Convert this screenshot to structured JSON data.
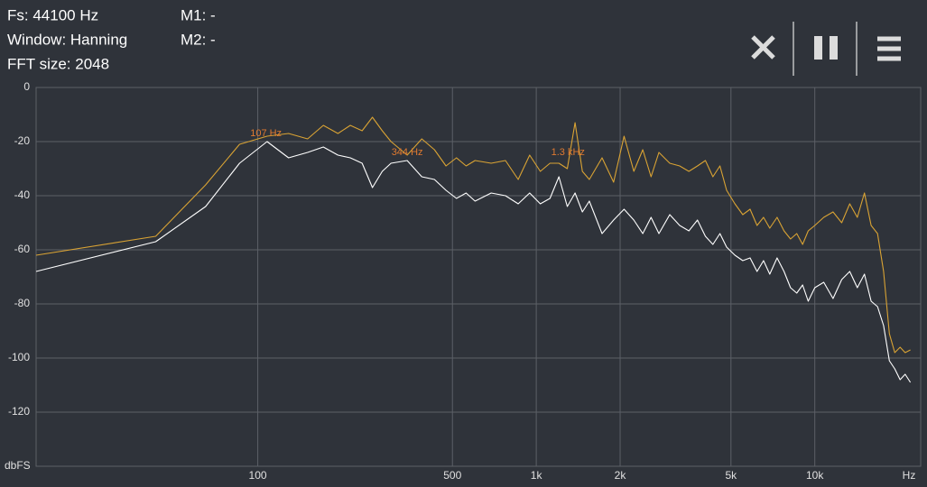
{
  "info": {
    "fs": "Fs: 44100 Hz",
    "window": "Window: Hanning",
    "fft": "FFT size: 2048",
    "m1": "M1: -",
    "m2": "M2: -"
  },
  "chart_data": {
    "type": "line",
    "x_label": "Hz",
    "y_label": "dbFS",
    "xlog": true,
    "grid": true,
    "xlim": [
      16,
      24000
    ],
    "ylim": [
      -140,
      0
    ],
    "xticks": [
      100,
      500,
      {
        "value": 1000,
        "label": "1k"
      },
      {
        "value": 2000,
        "label": "2k"
      },
      {
        "value": 5000,
        "label": "5k"
      },
      {
        "value": 10000,
        "label": "10k"
      }
    ],
    "yticks": [
      0,
      -20,
      -40,
      -60,
      -80,
      -100,
      -120
    ],
    "x": [
      16,
      43,
      65,
      86,
      108,
      129,
      151,
      172,
      194,
      215,
      237,
      258,
      280,
      301,
      344,
      388,
      431,
      474,
      517,
      560,
      603,
      689,
      775,
      861,
      947,
      1034,
      1120,
      1206,
      1292,
      1378,
      1464,
      1550,
      1722,
      1895,
      2067,
      2240,
      2412,
      2584,
      2756,
      3015,
      3273,
      3532,
      3790,
      4048,
      4307,
      4565,
      4823,
      5168,
      5513,
      5857,
      6202,
      6546,
      6891,
      7321,
      7752,
      8183,
      8613,
      9044,
      9474,
      10000,
      10766,
      11628,
      12489,
      13350,
      14212,
      15073,
      15934,
      16796,
      17657,
      18518,
      19380,
      20241,
      21103,
      22050
    ],
    "series": [
      {
        "color": "#d9a334",
        "values": [
          -62,
          -55,
          -36,
          -21,
          -18,
          -17,
          -19,
          -14,
          -17,
          -14,
          -16,
          -11,
          -16,
          -20,
          -25,
          -19,
          -23,
          -29,
          -26,
          -29,
          -27,
          -28,
          -27,
          -34,
          -25,
          -31,
          -28,
          -28,
          -30,
          -13,
          -31,
          -34,
          -26,
          -35,
          -18,
          -31,
          -23,
          -33,
          -24,
          -28,
          -29,
          -31,
          -29,
          -27,
          -33,
          -29,
          -38,
          -43,
          -47,
          -45,
          -51,
          -48,
          -52,
          -48,
          -53,
          -56,
          -54,
          -58,
          -53,
          -51,
          -48,
          -46,
          -50,
          -43,
          -48,
          -39,
          -51,
          -54,
          -68,
          -91,
          -98,
          -96,
          -98,
          -97
        ]
      },
      {
        "color": "#ffffff",
        "values": [
          -68,
          -57,
          -44,
          -28,
          -20,
          -26,
          -24,
          -22,
          -25,
          -26,
          -28,
          -37,
          -31,
          -28,
          -27,
          -33,
          -34,
          -38,
          -41,
          -39,
          -42,
          -39,
          -40,
          -43,
          -39,
          -43,
          -41,
          -33,
          -44,
          -39,
          -46,
          -42,
          -54,
          -49,
          -45,
          -49,
          -54,
          -48,
          -54,
          -47,
          -51,
          -53,
          -49,
          -55,
          -58,
          -54,
          -59,
          -62,
          -64,
          -63,
          -68,
          -64,
          -69,
          -63,
          -68,
          -74,
          -76,
          -73,
          -79,
          -74,
          -72,
          -78,
          -71,
          -68,
          -74,
          -69,
          -79,
          -81,
          -88,
          -101,
          -104,
          -108,
          -106,
          -109
        ]
      }
    ],
    "annotations": [
      {
        "text": "107 Hz",
        "x": 107,
        "y": -17
      },
      {
        "text": "344 Hz",
        "x": 344,
        "y": -24
      },
      {
        "text": "1.3 kHz",
        "x": 1300,
        "y": -24
      }
    ]
  }
}
